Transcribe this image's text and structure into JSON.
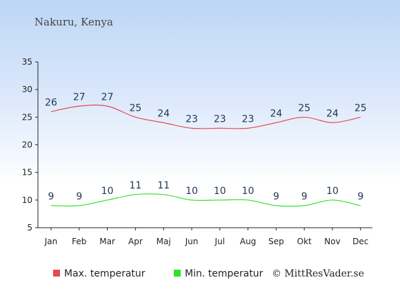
{
  "location": "Nakuru, Kenya",
  "credit": "© MittResVader.se",
  "colors": {
    "max": "#e8494a",
    "min": "#33e02a",
    "label": "#1f3556"
  },
  "chart_data": {
    "type": "line",
    "title": "Nakuru, Kenya",
    "categories": [
      "Jan",
      "Feb",
      "Mar",
      "Apr",
      "Maj",
      "Jun",
      "Jul",
      "Aug",
      "Sep",
      "Okt",
      "Nov",
      "Dec"
    ],
    "series": [
      {
        "name": "Max. temperatur",
        "values": [
          26,
          27,
          27,
          25,
          24,
          23,
          23,
          23,
          24,
          25,
          24,
          25
        ]
      },
      {
        "name": "Min. temperatur",
        "values": [
          9,
          9,
          10,
          11,
          11,
          10,
          10,
          10,
          9,
          9,
          10,
          9
        ]
      }
    ],
    "ylim": [
      5,
      35
    ],
    "yticks": [
      5,
      10,
      15,
      20,
      25,
      30,
      35
    ],
    "grid": false,
    "legend": "bottom-left"
  }
}
